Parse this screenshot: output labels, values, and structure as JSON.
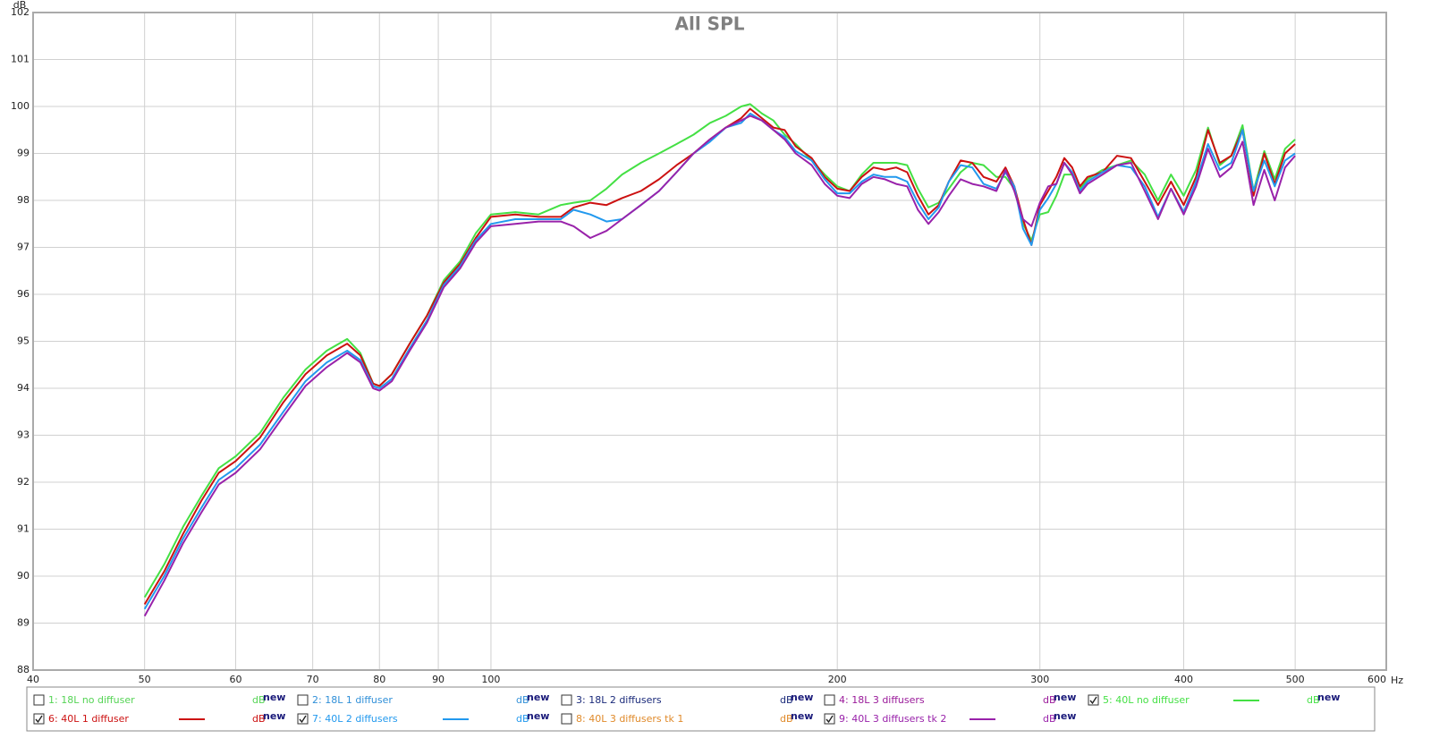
{
  "chart_data": {
    "type": "line",
    "title": "All SPL",
    "y_unit": "dB",
    "x_unit": "Hz",
    "xscale": "log",
    "grid": true,
    "xlim": [
      40,
      600
    ],
    "xticks": [
      40,
      50,
      60,
      70,
      80,
      90,
      100,
      200,
      300,
      400,
      500,
      600
    ],
    "ylim": [
      88,
      102
    ],
    "yticks": [
      88,
      89,
      90,
      91,
      92,
      93,
      94,
      95,
      96,
      97,
      98,
      99,
      100,
      101,
      102
    ],
    "legend_unit": "dB",
    "legend_tag": "new",
    "x": [
      50,
      52,
      54,
      56,
      58,
      60,
      63,
      66,
      69,
      72,
      75,
      77,
      79,
      80,
      82,
      85,
      88,
      91,
      94,
      97,
      100,
      105,
      110,
      115,
      118,
      122,
      126,
      130,
      135,
      140,
      145,
      150,
      155,
      160,
      165,
      168,
      172,
      176,
      180,
      184,
      190,
      195,
      200,
      205,
      210,
      215,
      220,
      225,
      230,
      235,
      240,
      245,
      250,
      256,
      262,
      268,
      275,
      280,
      285,
      290,
      295,
      300,
      305,
      310,
      315,
      320,
      325,
      330,
      340,
      350,
      360,
      370,
      380,
      390,
      400,
      410,
      420,
      430,
      440,
      450,
      460,
      470,
      480,
      490,
      500
    ],
    "series": [
      {
        "name": "1: 18L no diffuser",
        "color": "#55d455",
        "checked": false
      },
      {
        "name": "2: 18L 1 diffuser",
        "color": "#2f8fd8",
        "checked": false
      },
      {
        "name": "3: 18L 2 diffusers",
        "color": "#1a2a7a",
        "checked": false
      },
      {
        "name": "4: 18L 3 diffusers",
        "color": "#9a1a9a",
        "checked": false
      },
      {
        "name": "5: 40L no diffuser",
        "color": "#44e044",
        "checked": true,
        "values": [
          89.55,
          90.25,
          91.05,
          91.7,
          92.3,
          92.55,
          93.05,
          93.8,
          94.4,
          94.8,
          95.05,
          94.75,
          94.1,
          94.05,
          94.3,
          94.95,
          95.55,
          96.3,
          96.7,
          97.3,
          97.7,
          97.75,
          97.7,
          97.9,
          97.95,
          98.0,
          98.25,
          98.55,
          98.8,
          99.0,
          99.2,
          99.4,
          99.65,
          99.8,
          100.0,
          100.05,
          99.85,
          99.7,
          99.4,
          99.2,
          98.85,
          98.55,
          98.3,
          98.2,
          98.55,
          98.8,
          98.8,
          98.8,
          98.75,
          98.25,
          97.85,
          97.95,
          98.25,
          98.6,
          98.8,
          98.75,
          98.5,
          98.5,
          98.25,
          97.5,
          97.15,
          97.7,
          97.75,
          98.1,
          98.55,
          98.55,
          98.25,
          98.45,
          98.65,
          98.75,
          98.85,
          98.55,
          98.0,
          98.55,
          98.1,
          98.65,
          99.55,
          98.75,
          98.95,
          99.6,
          98.2,
          99.05,
          98.45,
          99.1,
          99.3
        ]
      },
      {
        "name": "6: 40L 1 diffuser",
        "color": "#cc1111",
        "checked": true,
        "values": [
          89.4,
          90.1,
          90.9,
          91.6,
          92.2,
          92.45,
          92.95,
          93.7,
          94.3,
          94.7,
          94.95,
          94.7,
          94.1,
          94.05,
          94.3,
          94.95,
          95.55,
          96.25,
          96.65,
          97.2,
          97.65,
          97.7,
          97.65,
          97.65,
          97.85,
          97.95,
          97.9,
          98.05,
          98.2,
          98.45,
          98.75,
          99.0,
          99.3,
          99.55,
          99.75,
          99.95,
          99.75,
          99.55,
          99.5,
          99.15,
          98.9,
          98.5,
          98.25,
          98.2,
          98.5,
          98.7,
          98.65,
          98.7,
          98.6,
          98.1,
          97.7,
          97.9,
          98.4,
          98.85,
          98.8,
          98.5,
          98.4,
          98.7,
          98.3,
          97.6,
          97.05,
          97.9,
          98.2,
          98.5,
          98.9,
          98.7,
          98.3,
          98.5,
          98.6,
          98.95,
          98.9,
          98.4,
          97.9,
          98.4,
          97.9,
          98.5,
          99.5,
          98.8,
          98.95,
          99.5,
          98.1,
          99.0,
          98.35,
          99.0,
          99.2
        ]
      },
      {
        "name": "7: 40L 2 diffusers",
        "color": "#2299ee",
        "checked": true,
        "values": [
          89.3,
          90.0,
          90.8,
          91.45,
          92.05,
          92.3,
          92.8,
          93.5,
          94.15,
          94.55,
          94.8,
          94.6,
          94.05,
          94.0,
          94.2,
          94.85,
          95.45,
          96.2,
          96.6,
          97.15,
          97.5,
          97.6,
          97.6,
          97.6,
          97.8,
          97.7,
          97.55,
          97.6,
          97.9,
          98.2,
          98.6,
          99.0,
          99.25,
          99.55,
          99.65,
          99.85,
          99.7,
          99.5,
          99.35,
          99.05,
          98.85,
          98.45,
          98.15,
          98.15,
          98.4,
          98.55,
          98.5,
          98.5,
          98.4,
          97.95,
          97.6,
          97.85,
          98.4,
          98.75,
          98.7,
          98.35,
          98.25,
          98.6,
          98.3,
          97.4,
          97.05,
          97.8,
          98.05,
          98.35,
          98.8,
          98.6,
          98.2,
          98.4,
          98.6,
          98.75,
          98.7,
          98.3,
          97.65,
          98.25,
          97.75,
          98.4,
          99.2,
          98.65,
          98.8,
          99.5,
          98.2,
          98.85,
          98.3,
          98.85,
          99.0
        ]
      },
      {
        "name": "8: 40L 3 diffusers tk 1",
        "color": "#e08a2a",
        "checked": false
      },
      {
        "name": "9: 40L 3 diffusers tk 2",
        "color": "#9922aa",
        "checked": true,
        "values": [
          89.15,
          89.9,
          90.7,
          91.35,
          91.95,
          92.2,
          92.7,
          93.4,
          94.05,
          94.45,
          94.75,
          94.55,
          94.0,
          93.95,
          94.15,
          94.8,
          95.4,
          96.15,
          96.55,
          97.1,
          97.45,
          97.5,
          97.55,
          97.55,
          97.45,
          97.2,
          97.35,
          97.6,
          97.9,
          98.2,
          98.6,
          99.0,
          99.3,
          99.55,
          99.7,
          99.8,
          99.7,
          99.5,
          99.3,
          99.0,
          98.75,
          98.35,
          98.1,
          98.05,
          98.35,
          98.5,
          98.45,
          98.35,
          98.3,
          97.8,
          97.5,
          97.75,
          98.1,
          98.45,
          98.35,
          98.3,
          98.2,
          98.65,
          98.2,
          97.6,
          97.45,
          97.95,
          98.3,
          98.35,
          98.8,
          98.55,
          98.15,
          98.35,
          98.55,
          98.75,
          98.8,
          98.2,
          97.6,
          98.25,
          97.7,
          98.3,
          99.1,
          98.5,
          98.7,
          99.25,
          97.9,
          98.65,
          98.0,
          98.7,
          98.95
        ]
      }
    ]
  }
}
